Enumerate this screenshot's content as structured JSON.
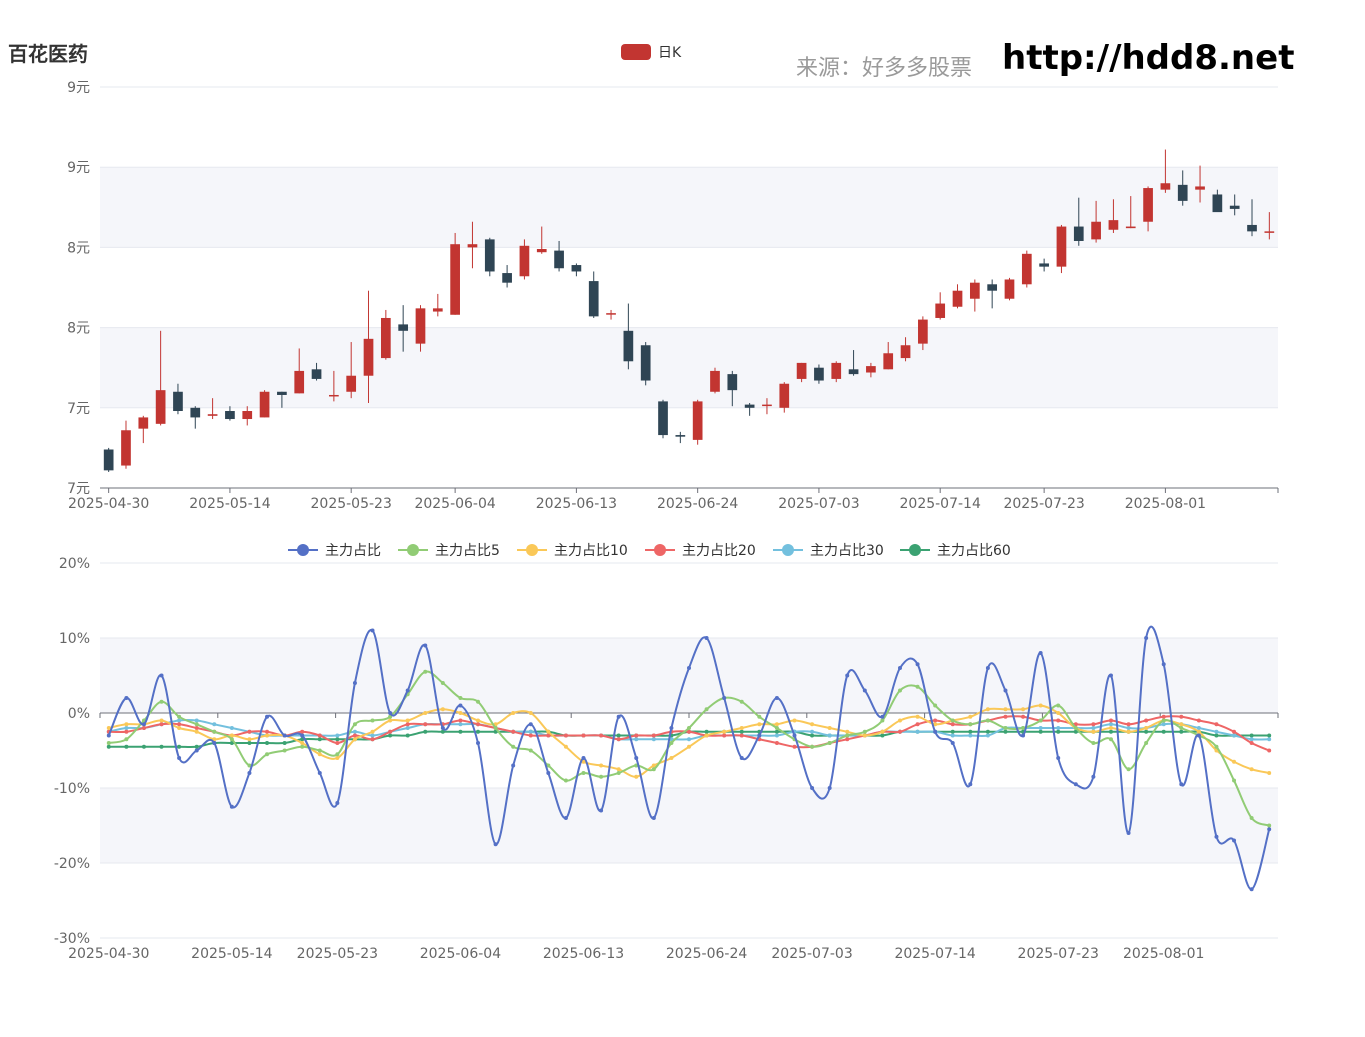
{
  "title": "百花医药",
  "watermark": "来源：好多多股票",
  "url": "http://hdd8.net",
  "chart_data": [
    {
      "type": "candlestick",
      "legend": [
        "日K"
      ],
      "colors": {
        "up": "#c23531",
        "down": "#2f4554"
      },
      "y_tick_labels": [
        "9元",
        "9元",
        "8元",
        "8元",
        "7元",
        "7元"
      ],
      "ylim": [
        6.75,
        9.25
      ],
      "x_tick_labels": [
        "2025-04-30",
        "2025-05-14",
        "2025-05-23",
        "2025-06-04",
        "2025-06-13",
        "2025-06-24",
        "2025-07-03",
        "2025-07-14",
        "2025-07-23",
        "2025-08-01"
      ],
      "candles": [
        [
          6.99,
          6.86,
          7.0,
          6.85
        ],
        [
          6.89,
          7.11,
          7.17,
          6.87
        ],
        [
          7.12,
          7.19,
          7.2,
          7.03
        ],
        [
          7.15,
          7.36,
          7.73,
          7.14
        ],
        [
          7.35,
          7.23,
          7.4,
          7.21
        ],
        [
          7.25,
          7.19,
          7.26,
          7.12
        ],
        [
          7.2,
          7.21,
          7.31,
          7.18
        ],
        [
          7.23,
          7.18,
          7.26,
          7.17
        ],
        [
          7.18,
          7.23,
          7.26,
          7.14
        ],
        [
          7.19,
          7.35,
          7.36,
          7.19
        ],
        [
          7.35,
          7.33,
          7.35,
          7.25
        ],
        [
          7.34,
          7.48,
          7.62,
          7.34
        ],
        [
          7.49,
          7.43,
          7.53,
          7.42
        ],
        [
          7.33,
          7.33,
          7.48,
          7.29
        ],
        [
          7.35,
          7.45,
          7.66,
          7.31
        ],
        [
          7.45,
          7.68,
          7.98,
          7.28
        ],
        [
          7.56,
          7.81,
          7.86,
          7.55
        ],
        [
          7.77,
          7.73,
          7.89,
          7.6
        ],
        [
          7.65,
          7.87,
          7.89,
          7.6
        ],
        [
          7.85,
          7.87,
          7.96,
          7.82
        ],
        [
          7.83,
          8.27,
          8.34,
          7.83
        ],
        [
          8.25,
          8.27,
          8.41,
          8.12
        ],
        [
          8.3,
          8.1,
          8.31,
          8.07
        ],
        [
          8.09,
          8.03,
          8.14,
          8.0
        ],
        [
          8.07,
          8.26,
          8.3,
          8.05
        ],
        [
          8.22,
          8.24,
          8.38,
          8.21
        ],
        [
          8.23,
          8.12,
          8.29,
          8.1
        ],
        [
          8.14,
          8.1,
          8.15,
          8.07
        ],
        [
          8.04,
          7.82,
          8.1,
          7.81
        ],
        [
          7.84,
          7.84,
          7.86,
          7.8
        ],
        [
          7.73,
          7.54,
          7.9,
          7.49
        ],
        [
          7.64,
          7.42,
          7.66,
          7.39
        ],
        [
          7.29,
          7.08,
          7.3,
          7.06
        ],
        [
          7.08,
          7.07,
          7.1,
          7.03
        ],
        [
          7.05,
          7.29,
          7.3,
          7.02
        ],
        [
          7.35,
          7.48,
          7.5,
          7.34
        ],
        [
          7.46,
          7.36,
          7.48,
          7.26
        ],
        [
          7.27,
          7.25,
          7.28,
          7.2
        ],
        [
          7.27,
          7.27,
          7.31,
          7.21
        ],
        [
          7.25,
          7.4,
          7.41,
          7.22
        ],
        [
          7.43,
          7.53,
          7.53,
          7.41
        ],
        [
          7.5,
          7.42,
          7.52,
          7.4
        ],
        [
          7.43,
          7.53,
          7.54,
          7.41
        ],
        [
          7.49,
          7.46,
          7.61,
          7.45
        ],
        [
          7.47,
          7.51,
          7.53,
          7.44
        ],
        [
          7.49,
          7.59,
          7.66,
          7.49
        ],
        [
          7.56,
          7.64,
          7.69,
          7.54
        ],
        [
          7.65,
          7.8,
          7.82,
          7.61
        ],
        [
          7.81,
          7.9,
          7.97,
          7.8
        ],
        [
          7.88,
          7.98,
          8.02,
          7.87
        ],
        [
          7.93,
          8.03,
          8.05,
          7.85
        ],
        [
          8.02,
          7.98,
          8.05,
          7.87
        ],
        [
          7.93,
          8.05,
          8.06,
          7.92
        ],
        [
          8.02,
          8.21,
          8.23,
          8.0
        ],
        [
          8.15,
          8.13,
          8.18,
          8.1
        ],
        [
          8.13,
          8.38,
          8.39,
          8.09
        ],
        [
          8.38,
          8.29,
          8.56,
          8.26
        ],
        [
          8.3,
          8.41,
          8.54,
          8.28
        ],
        [
          8.36,
          8.42,
          8.55,
          8.34
        ],
        [
          8.37,
          8.38,
          8.57,
          8.37
        ],
        [
          8.41,
          8.62,
          8.63,
          8.35
        ],
        [
          8.61,
          8.65,
          8.86,
          8.59
        ],
        [
          8.64,
          8.54,
          8.73,
          8.51
        ],
        [
          8.61,
          8.63,
          8.76,
          8.53
        ],
        [
          8.58,
          8.47,
          8.61,
          8.5
        ],
        [
          8.51,
          8.49,
          8.58,
          8.45
        ],
        [
          8.39,
          8.35,
          8.55,
          8.32
        ],
        [
          8.35,
          8.35,
          8.47,
          8.3
        ]
      ]
    },
    {
      "type": "line",
      "y_tick_labels": [
        "20%",
        "10%",
        "0%",
        "-10%",
        "-20%",
        "-30%"
      ],
      "ylim": [
        -30,
        20
      ],
      "x_tick_labels": [
        "2025-04-30",
        "2025-05-14",
        "2025-05-23",
        "2025-06-04",
        "2025-06-13",
        "2025-06-24",
        "2025-07-03",
        "2025-07-14",
        "2025-07-23",
        "2025-08-01"
      ],
      "series": [
        {
          "name": "主力占比",
          "color": "#5470c6",
          "values": [
            -3.0,
            2.0,
            -1.5,
            5.0,
            -6.0,
            -5.0,
            -4.0,
            -12.5,
            -8.0,
            -0.5,
            -3.0,
            -3.0,
            -8.0,
            -12.0,
            4.0,
            11.0,
            0.0,
            3.0,
            9.0,
            -2.0,
            1.0,
            -4.0,
            -17.5,
            -7.0,
            -1.5,
            -8.0,
            -14.0,
            -6.0,
            -13.0,
            -0.5,
            -6.0,
            -14.0,
            -2.0,
            6.0,
            10.0,
            2.0,
            -6.0,
            -3.0,
            2.0,
            -3.0,
            -10.0,
            -10.0,
            5.0,
            3.0,
            -0.5,
            6.0,
            6.5,
            -2.5,
            -4.0,
            -9.5,
            6.0,
            3.0,
            -3.0,
            8.0,
            -6.0,
            -9.5,
            -8.5,
            5.0,
            -16.0,
            10.0,
            6.5,
            -9.5,
            -3.0,
            -16.5,
            -17.0,
            -23.5,
            -15.5
          ]
        },
        {
          "name": "主力占比5",
          "color": "#91cc75",
          "values": [
            -4.0,
            -3.5,
            -1.0,
            1.5,
            -0.5,
            -1.5,
            -2.5,
            -3.5,
            -7.0,
            -5.5,
            -5.0,
            -4.5,
            -5.0,
            -5.5,
            -1.5,
            -1.0,
            -0.5,
            2.5,
            5.5,
            4.0,
            2.0,
            1.5,
            -2.0,
            -4.5,
            -5.0,
            -7.0,
            -9.0,
            -8.0,
            -8.5,
            -8.0,
            -7.0,
            -7.5,
            -4.0,
            -2.0,
            0.5,
            2.0,
            1.5,
            -0.5,
            -2.0,
            -3.5,
            -4.5,
            -4.0,
            -3.0,
            -2.5,
            -1.0,
            3.0,
            3.5,
            1.0,
            -1.0,
            -1.5,
            -1.0,
            -2.0,
            -2.0,
            -1.0,
            1.0,
            -2.0,
            -4.0,
            -3.5,
            -7.5,
            -4.0,
            -1.0,
            -2.0,
            -3.0,
            -4.5,
            -9.0,
            -14.0,
            -15.0
          ]
        },
        {
          "name": "主力占比10",
          "color": "#fac858",
          "values": [
            -2.0,
            -1.5,
            -1.5,
            -1.0,
            -2.0,
            -2.5,
            -3.5,
            -3.0,
            -3.5,
            -3.0,
            -3.0,
            -4.0,
            -5.5,
            -6.0,
            -3.5,
            -2.5,
            -1.0,
            -1.0,
            0.0,
            0.5,
            0.0,
            -1.0,
            -1.5,
            0.0,
            0.0,
            -2.5,
            -4.5,
            -6.5,
            -7.0,
            -7.5,
            -8.5,
            -7.0,
            -6.0,
            -4.5,
            -3.0,
            -2.5,
            -2.0,
            -1.5,
            -1.5,
            -1.0,
            -1.5,
            -2.0,
            -2.5,
            -3.0,
            -2.5,
            -1.0,
            -0.5,
            -1.5,
            -1.0,
            -0.5,
            0.5,
            0.5,
            0.5,
            1.0,
            0.0,
            -2.0,
            -2.5,
            -2.0,
            -2.5,
            -2.0,
            -1.0,
            -1.5,
            -2.5,
            -5.0,
            -6.5,
            -7.5,
            -8.0
          ]
        },
        {
          "name": "主力占比20",
          "color": "#ee6666",
          "values": [
            -2.5,
            -2.5,
            -2.0,
            -1.5,
            -1.5,
            -2.0,
            -2.5,
            -3.0,
            -2.5,
            -2.5,
            -3.0,
            -2.5,
            -3.0,
            -4.0,
            -3.0,
            -3.5,
            -2.5,
            -1.5,
            -1.5,
            -1.5,
            -1.0,
            -1.5,
            -2.0,
            -2.5,
            -3.0,
            -3.0,
            -3.0,
            -3.0,
            -3.0,
            -3.5,
            -3.0,
            -3.0,
            -2.5,
            -2.5,
            -3.0,
            -3.0,
            -3.0,
            -3.5,
            -4.0,
            -4.5,
            -4.5,
            -4.0,
            -3.5,
            -3.0,
            -2.5,
            -2.5,
            -1.5,
            -1.0,
            -1.5,
            -1.5,
            -1.0,
            -0.5,
            -0.5,
            -1.0,
            -1.0,
            -1.5,
            -1.5,
            -1.0,
            -1.5,
            -1.0,
            -0.5,
            -0.5,
            -1.0,
            -1.5,
            -2.5,
            -4.0,
            -5.0
          ]
        },
        {
          "name": "主力占比30",
          "color": "#73c0de",
          "values": [
            -2.5,
            -2.0,
            -2.0,
            -1.5,
            -1.0,
            -1.0,
            -1.5,
            -2.0,
            -2.5,
            -3.0,
            -3.0,
            -3.0,
            -3.0,
            -3.0,
            -2.5,
            -3.0,
            -2.5,
            -2.0,
            -1.5,
            -1.5,
            -1.5,
            -1.5,
            -2.0,
            -2.5,
            -2.5,
            -3.0,
            -3.0,
            -3.0,
            -3.0,
            -3.5,
            -3.5,
            -3.5,
            -3.5,
            -3.5,
            -3.0,
            -3.0,
            -3.0,
            -3.0,
            -3.0,
            -2.5,
            -2.5,
            -3.0,
            -3.0,
            -3.0,
            -2.5,
            -2.5,
            -2.5,
            -2.5,
            -3.0,
            -3.0,
            -3.0,
            -2.0,
            -2.0,
            -2.0,
            -2.0,
            -2.0,
            -2.0,
            -1.5,
            -2.0,
            -2.0,
            -1.5,
            -1.5,
            -2.0,
            -2.5,
            -3.0,
            -3.5,
            -3.5
          ]
        },
        {
          "name": "主力占比60",
          "color": "#3ba272",
          "values": [
            -4.5,
            -4.5,
            -4.5,
            -4.5,
            -4.5,
            -4.5,
            -4.0,
            -4.0,
            -4.0,
            -4.0,
            -4.0,
            -3.5,
            -3.5,
            -3.5,
            -3.5,
            -3.5,
            -3.0,
            -3.0,
            -2.5,
            -2.5,
            -2.5,
            -2.5,
            -2.5,
            -2.5,
            -2.5,
            -2.5,
            -3.0,
            -3.0,
            -3.0,
            -3.0,
            -3.0,
            -3.0,
            -3.0,
            -2.5,
            -2.5,
            -2.5,
            -2.5,
            -2.5,
            -2.5,
            -2.5,
            -3.0,
            -3.0,
            -3.0,
            -3.0,
            -3.0,
            -2.5,
            -2.5,
            -2.5,
            -2.5,
            -2.5,
            -2.5,
            -2.5,
            -2.5,
            -2.5,
            -2.5,
            -2.5,
            -2.5,
            -2.5,
            -2.5,
            -2.5,
            -2.5,
            -2.5,
            -2.5,
            -3.0,
            -3.0,
            -3.0,
            -3.0
          ]
        }
      ]
    }
  ]
}
